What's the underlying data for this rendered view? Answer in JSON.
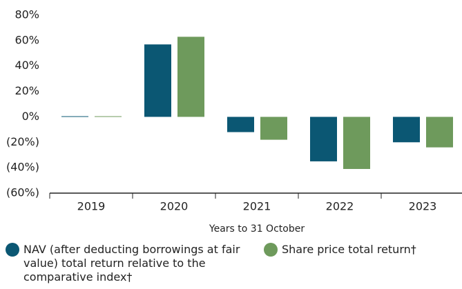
{
  "chart_data": {
    "type": "bar",
    "x_label": "Years to 31 October",
    "categories": [
      "2019",
      "2020",
      "2021",
      "2022",
      "2023"
    ],
    "series": [
      {
        "name": "NAV (after deducting borrowings at fair value) total return relative to the comparative index†",
        "color": "#0b5773",
        "values": [
          0.5,
          57,
          -12,
          -35,
          -20
        ]
      },
      {
        "name": "Share price total return†",
        "color": "#6e9a5c",
        "values": [
          0.5,
          63,
          -18,
          -41,
          -24
        ]
      }
    ],
    "ylim": [
      -60,
      80
    ],
    "yticks": [
      {
        "value": -60,
        "label": "(60%)"
      },
      {
        "value": -40,
        "label": "(40%)"
      },
      {
        "value": -20,
        "label": "(20%)"
      },
      {
        "value": 0,
        "label": "0%"
      },
      {
        "value": 20,
        "label": "20%"
      },
      {
        "value": 40,
        "label": "40%"
      },
      {
        "value": 60,
        "label": "60%"
      },
      {
        "value": 80,
        "label": "80%"
      }
    ],
    "grid": false
  }
}
